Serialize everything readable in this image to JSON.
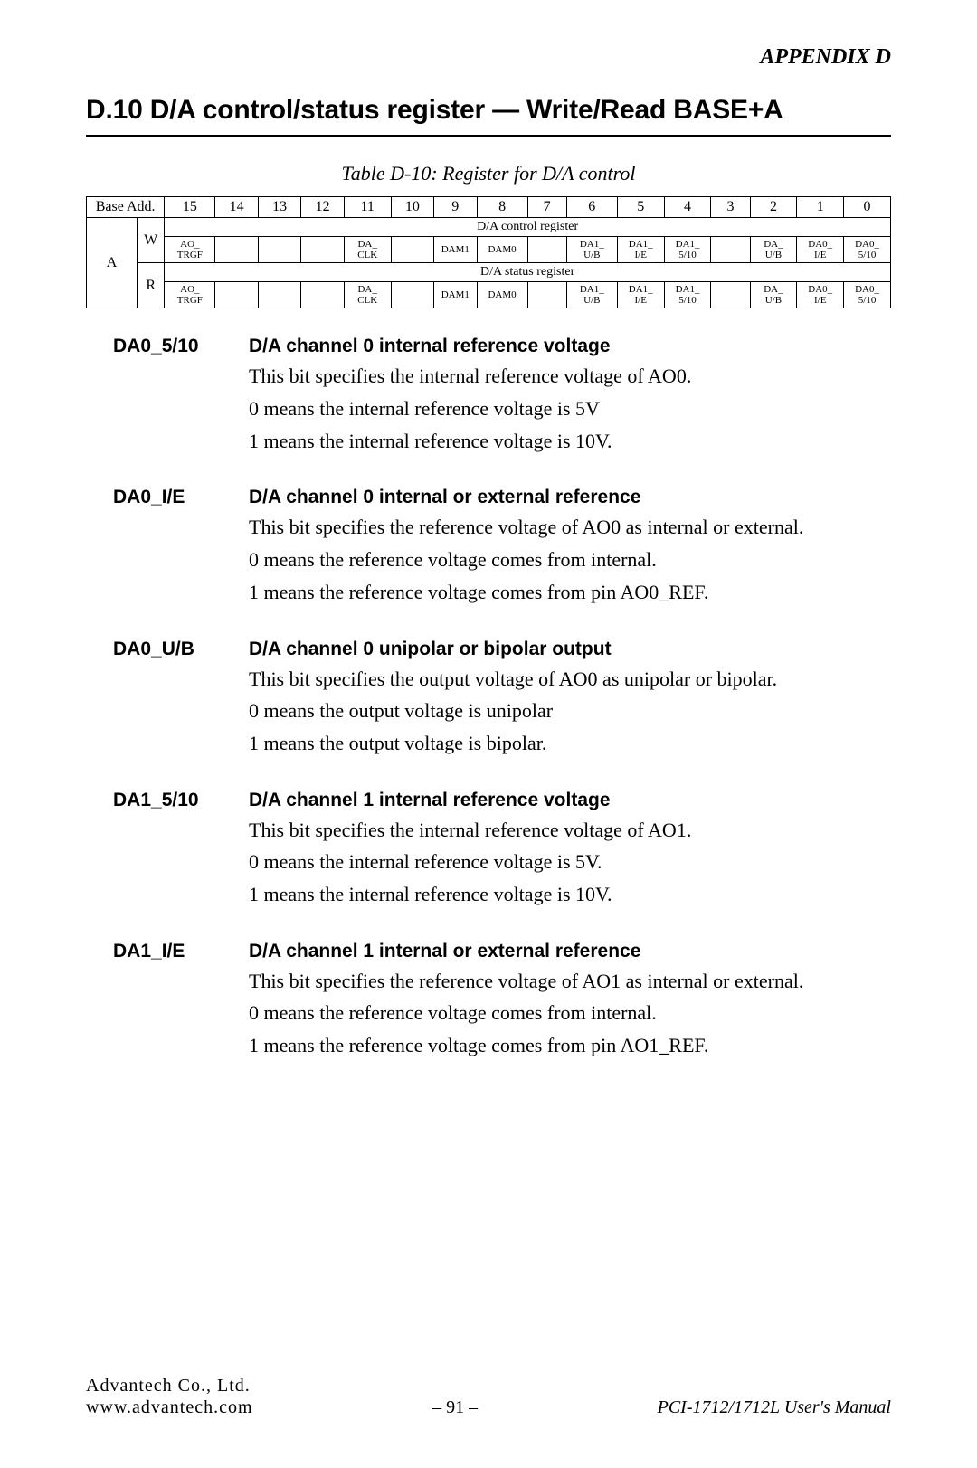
{
  "header": {
    "appendix": "APPENDIX D"
  },
  "section": {
    "title": "D.10 D/A control/status register — Write/Read BASE+A"
  },
  "table": {
    "caption": "Table D-10:  Register for D/A control",
    "base_add_label": "Base Add.",
    "bit_numbers": [
      "15",
      "14",
      "13",
      "12",
      "11",
      "10",
      "9",
      "8",
      "7",
      "6",
      "5",
      "4",
      "3",
      "2",
      "1",
      "0"
    ],
    "row_a_label": "A",
    "w_label": "W",
    "r_label": "R",
    "control_banner": "D/A control register",
    "status_banner": "D/A status register",
    "w_cells": [
      "AO_\nTRGF",
      "",
      "",
      "",
      "DA_\nCLK",
      "",
      "DAM1",
      "DAM0",
      "",
      "DA1_\nU/B",
      "DA1_\nI/E",
      "DA1_\n5/10",
      "",
      "DA_\nU/B",
      "DA0_\nI/E",
      "DA0_\n5/10"
    ],
    "r_cells": [
      "AO_\nTRGF",
      "",
      "",
      "",
      "DA_\nCLK",
      "",
      "DAM1",
      "DAM0",
      "",
      "DA1_\nU/B",
      "DA1_\nI/E",
      "DA1_\n5/10",
      "",
      "DA_\nU/B",
      "DA0_\nI/E",
      "DA0_\n5/10"
    ]
  },
  "definitions": [
    {
      "label": "DA0_5/10",
      "title": "D/A channel 0 internal reference voltage",
      "lines": [
        "This bit specifies the internal reference voltage of AO0.",
        "0 means the internal reference voltage is 5V",
        "1 means the internal reference voltage is 10V."
      ]
    },
    {
      "label": "DA0_I/E",
      "title": "D/A channel 0 internal or external reference",
      "lines": [
        "This bit specifies the reference voltage of AO0 as internal or external.",
        "0 means the reference voltage comes from internal.",
        "1 means the reference voltage comes from pin AO0_REF."
      ]
    },
    {
      "label": "DA0_U/B",
      "title": "D/A channel 0 unipolar or bipolar output",
      "lines": [
        "This bit specifies the output voltage of AO0 as unipolar or bipolar.",
        "0 means the output voltage is unipolar",
        "1 means the output voltage is bipolar."
      ]
    },
    {
      "label": "DA1_5/10",
      "title": "D/A channel 1 internal reference voltage",
      "lines": [
        "This bit specifies the internal reference voltage of AO1.",
        "0 means the internal reference voltage is 5V.",
        "1 means the internal reference voltage is 10V."
      ]
    },
    {
      "label": "DA1_I/E",
      "title": "D/A channel 1 internal or external reference",
      "lines": [
        "This bit specifies the reference voltage of AO1 as internal or external.",
        "0 means the reference voltage comes from internal.",
        "1 means the reference voltage comes from pin AO1_REF."
      ]
    }
  ],
  "footer": {
    "company": "Advantech Co., Ltd.",
    "url": "www.advantech.com",
    "page": "– 91 –",
    "manual": "PCI-1712/1712L User's Manual"
  },
  "style": {
    "font_body": "Times New Roman",
    "font_heading": "Arial",
    "text_color": "#000000",
    "bg_color": "#ffffff",
    "border_color": "#000000"
  }
}
